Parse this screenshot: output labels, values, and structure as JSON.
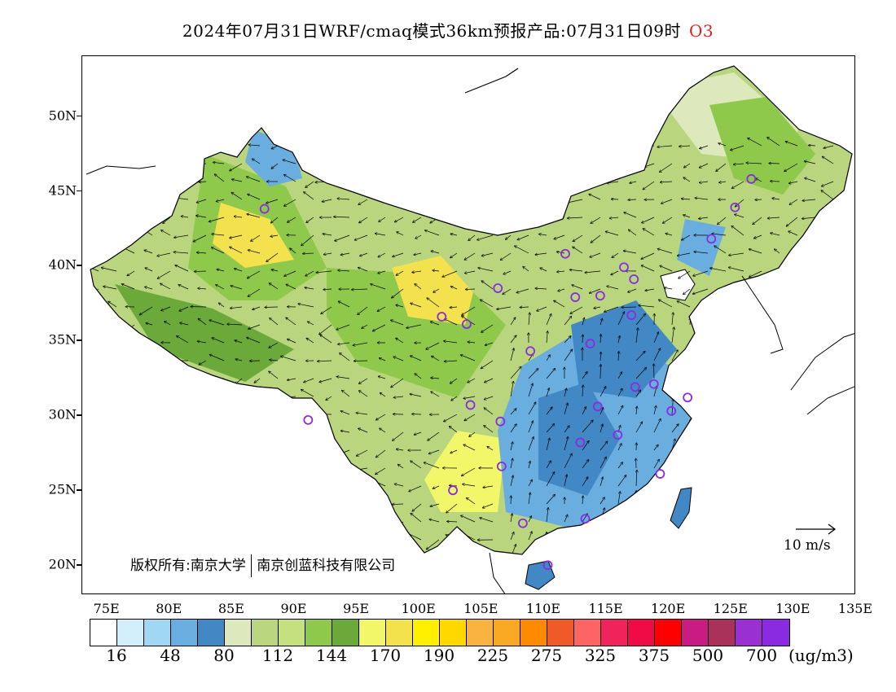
{
  "title": {
    "text": "2024年07月31日WRF/cmaq模式36km预报产品:07月31日09时",
    "species": "O3"
  },
  "map": {
    "lat_labels": [
      "50N",
      "45N",
      "40N",
      "35N",
      "30N",
      "25N",
      "20N"
    ],
    "lon_labels": [
      "75E",
      "80E",
      "85E",
      "90E",
      "95E",
      "100E",
      "105E",
      "110E",
      "115E",
      "120E",
      "125E",
      "130E",
      "135E"
    ],
    "lon_range": [
      73,
      135
    ],
    "lat_range": [
      18,
      54
    ]
  },
  "copyright": {
    "owner": "版权所有:南京大学",
    "partner": "南京创蓝科技有限公司"
  },
  "wind_reference": {
    "label": "10 m/s"
  },
  "colorbar": {
    "colors": [
      "#ffffff",
      "#d2eefb",
      "#a0d8f4",
      "#6aaee0",
      "#4288c4",
      "#dde8bc",
      "#b9d57e",
      "#c4e07f",
      "#8ec94c",
      "#6aa93a",
      "#f2f76a",
      "#f3e24e",
      "#ffef00",
      "#ffd800",
      "#f7b23f",
      "#f9a824",
      "#ff8a00",
      "#f05a28",
      "#ff6464",
      "#f0245a",
      "#f00a46",
      "#ff0000",
      "#c81c82",
      "#a8325a",
      "#9b30d2",
      "#8a2be2"
    ],
    "labels": [
      "16",
      "48",
      "80",
      "112",
      "144",
      "170",
      "190",
      "225",
      "275",
      "325",
      "375",
      "500",
      "700"
    ],
    "unit": "(ug/m3)"
  },
  "stations": [
    {
      "lon": 87.6,
      "lat": 43.8
    },
    {
      "lon": 91.1,
      "lat": 29.7
    },
    {
      "lon": 101.8,
      "lat": 36.6
    },
    {
      "lon": 103.8,
      "lat": 36.1
    },
    {
      "lon": 106.3,
      "lat": 38.5
    },
    {
      "lon": 104.1,
      "lat": 30.7
    },
    {
      "lon": 102.7,
      "lat": 25.0
    },
    {
      "lon": 106.6,
      "lat": 26.6
    },
    {
      "lon": 106.5,
      "lat": 29.6
    },
    {
      "lon": 108.9,
      "lat": 34.3
    },
    {
      "lon": 111.7,
      "lat": 40.8
    },
    {
      "lon": 112.5,
      "lat": 37.9
    },
    {
      "lon": 114.5,
      "lat": 38.0
    },
    {
      "lon": 116.4,
      "lat": 39.9
    },
    {
      "lon": 117.2,
      "lat": 39.1
    },
    {
      "lon": 117.0,
      "lat": 36.7
    },
    {
      "lon": 113.7,
      "lat": 34.8
    },
    {
      "lon": 114.3,
      "lat": 30.6
    },
    {
      "lon": 112.9,
      "lat": 28.2
    },
    {
      "lon": 117.3,
      "lat": 31.9
    },
    {
      "lon": 118.8,
      "lat": 32.1
    },
    {
      "lon": 120.2,
      "lat": 30.3
    },
    {
      "lon": 121.5,
      "lat": 31.2
    },
    {
      "lon": 115.9,
      "lat": 28.7
    },
    {
      "lon": 119.3,
      "lat": 26.1
    },
    {
      "lon": 113.3,
      "lat": 23.1
    },
    {
      "lon": 108.3,
      "lat": 22.8
    },
    {
      "lon": 110.3,
      "lat": 20.0
    },
    {
      "lon": 123.4,
      "lat": 41.8
    },
    {
      "lon": 125.3,
      "lat": 43.9
    },
    {
      "lon": 126.6,
      "lat": 45.8
    }
  ]
}
